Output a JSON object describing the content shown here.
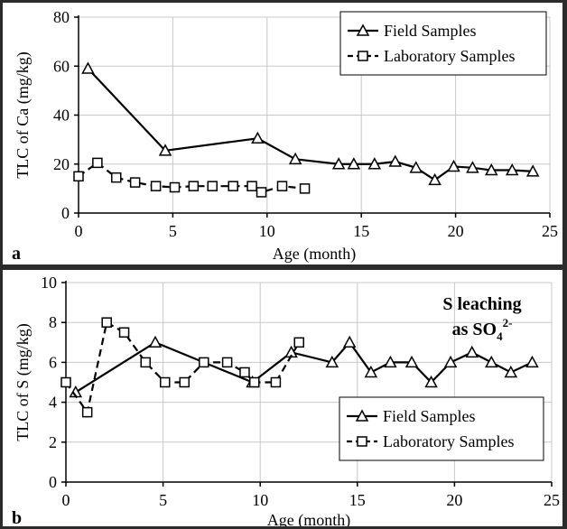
{
  "chart_data": [
    {
      "panel_label": "a",
      "type": "line",
      "xlabel": "Age (month)",
      "ylabel": "TLC of Ca (mg/kg)",
      "xlim": [
        0,
        25
      ],
      "ylim": [
        0,
        80
      ],
      "xticks": [
        0,
        5,
        10,
        15,
        20,
        25
      ],
      "yticks": [
        0,
        20,
        40,
        60,
        80
      ],
      "grid": "horizontal and vertical",
      "legend_position": "top-right",
      "annotation": "",
      "series": [
        {
          "name": "Field Samples",
          "marker": "triangle",
          "line": "solid",
          "x": [
            0.5,
            4.6,
            9.5,
            11.5,
            13.8,
            14.6,
            15.7,
            16.8,
            17.9,
            18.9,
            19.9,
            20.9,
            21.9,
            23.0,
            24.1
          ],
          "y": [
            59,
            25.5,
            30.5,
            22,
            20,
            20,
            20,
            21,
            18.5,
            13.5,
            19,
            18.5,
            17.5,
            17.5,
            17
          ]
        },
        {
          "name": "Laboratory Samples",
          "marker": "square",
          "line": "dashed",
          "x": [
            0,
            1.0,
            2.0,
            3.0,
            4.1,
            5.1,
            6.1,
            7.1,
            8.2,
            9.2,
            9.7,
            10.8,
            12.0
          ],
          "y": [
            15,
            20.5,
            14.5,
            12.5,
            11,
            10.5,
            11,
            11,
            11,
            11,
            8.5,
            11,
            10
          ]
        }
      ]
    },
    {
      "panel_label": "b",
      "type": "line",
      "xlabel": "Age (month)",
      "ylabel": "TLC of S (mg/kg)",
      "xlim": [
        0,
        25
      ],
      "ylim": [
        0,
        10
      ],
      "xticks": [
        0,
        5,
        10,
        15,
        20,
        25
      ],
      "yticks": [
        0,
        2,
        4,
        6,
        8,
        10
      ],
      "grid": "horizontal and vertical",
      "legend_position": "bottom-right",
      "annotation": "S leaching",
      "annotation_line2": "as SO",
      "annotation_sub": "4",
      "annotation_sup": "2-",
      "series": [
        {
          "name": "Field Samples",
          "marker": "triangle",
          "line": "solid",
          "x": [
            0.5,
            4.6,
            9.6,
            11.6,
            13.7,
            14.6,
            15.7,
            16.7,
            17.8,
            18.8,
            19.8,
            20.9,
            21.9,
            22.9,
            24.0
          ],
          "y": [
            4.5,
            7,
            5,
            6.5,
            6,
            7,
            5.5,
            6,
            6,
            5,
            6,
            6.5,
            6,
            5.5,
            6
          ]
        },
        {
          "name": "Laboratory Samples",
          "marker": "square",
          "line": "dashed",
          "x": [
            0,
            1.1,
            2.1,
            3.0,
            4.1,
            5.1,
            6.1,
            7.1,
            8.3,
            9.2,
            9.7,
            10.8,
            12.0
          ],
          "y": [
            5,
            3.5,
            8,
            7.5,
            6,
            5,
            5,
            6,
            6,
            5.5,
            5,
            5,
            7
          ]
        }
      ]
    }
  ]
}
